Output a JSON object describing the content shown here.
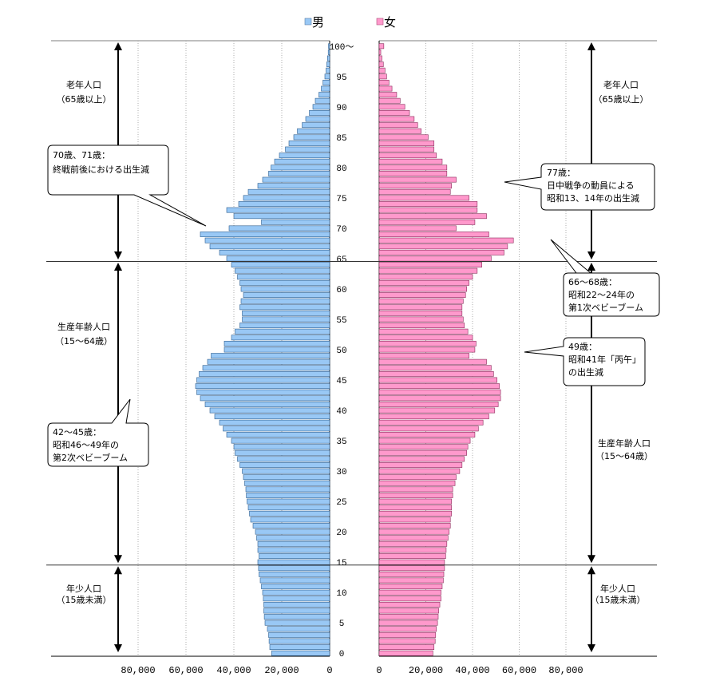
{
  "chart_data": {
    "type": "bar",
    "orientation": "horizontal-population-pyramid",
    "legend": [
      {
        "key": "male",
        "label": "男",
        "color": "#99c8f5"
      },
      {
        "key": "female",
        "label": "女",
        "color": "#ff99cc"
      }
    ],
    "x_axis_male": {
      "range": [
        80000,
        0
      ],
      "ticks": [
        "80,000",
        "60,000",
        "40,000",
        "20,000",
        "0"
      ]
    },
    "x_axis_female": {
      "range": [
        0,
        80000
      ],
      "ticks": [
        "0",
        "20,000",
        "40,000",
        "60,000",
        "80,000"
      ]
    },
    "age_ticks": [
      "0",
      "5",
      "10",
      "15",
      "20",
      "25",
      "30",
      "35",
      "40",
      "45",
      "50",
      "55",
      "60",
      "65",
      "70",
      "75",
      "80",
      "85",
      "90",
      "95",
      "100～"
    ],
    "ages": [
      0,
      1,
      2,
      3,
      4,
      5,
      6,
      7,
      8,
      9,
      10,
      11,
      12,
      13,
      14,
      15,
      16,
      17,
      18,
      19,
      20,
      21,
      22,
      23,
      24,
      25,
      26,
      27,
      28,
      29,
      30,
      31,
      32,
      33,
      34,
      35,
      36,
      37,
      38,
      39,
      40,
      41,
      42,
      43,
      44,
      45,
      46,
      47,
      48,
      49,
      50,
      51,
      52,
      53,
      54,
      55,
      56,
      57,
      58,
      59,
      60,
      61,
      62,
      63,
      64,
      65,
      66,
      67,
      68,
      69,
      70,
      71,
      72,
      73,
      74,
      75,
      76,
      77,
      78,
      79,
      80,
      81,
      82,
      83,
      84,
      85,
      86,
      87,
      88,
      89,
      90,
      91,
      92,
      93,
      94,
      95,
      96,
      97,
      98,
      99,
      100
    ],
    "series": [
      {
        "name": "男",
        "values": [
          24200,
          25000,
          25300,
          25500,
          26000,
          27000,
          27300,
          27500,
          27500,
          27700,
          28000,
          28500,
          29000,
          29500,
          29700,
          30000,
          29500,
          30000,
          30000,
          30500,
          31000,
          32000,
          33000,
          33500,
          34000,
          34500,
          34800,
          35000,
          35500,
          36000,
          36500,
          37500,
          38500,
          39500,
          40000,
          41000,
          43000,
          44500,
          46000,
          48000,
          50000,
          52000,
          54000,
          55500,
          56000,
          55500,
          54500,
          53000,
          51000,
          49500,
          44000,
          44000,
          41000,
          39500,
          37500,
          36500,
          36500,
          37500,
          37000,
          36000,
          37000,
          37500,
          38500,
          39500,
          41000,
          43000,
          46000,
          50000,
          52000,
          54000,
          42000,
          28500,
          40000,
          43000,
          38000,
          36000,
          34000,
          30000,
          28000,
          25500,
          24500,
          23000,
          21000,
          18500,
          17000,
          15000,
          13500,
          11500,
          10000,
          8500,
          7000,
          6000,
          4500,
          3500,
          2800,
          2000,
          1500,
          1200,
          900,
          600,
          500
        ]
      },
      {
        "name": "女",
        "values": [
          23000,
          23500,
          24000,
          24200,
          24500,
          25000,
          25300,
          25500,
          26000,
          26500,
          26500,
          27000,
          27500,
          27700,
          28000,
          28000,
          28500,
          28700,
          29000,
          29500,
          30000,
          30500,
          30500,
          31000,
          31000,
          31000,
          31500,
          31500,
          32500,
          33000,
          34500,
          35500,
          36500,
          37500,
          38000,
          39000,
          41000,
          42500,
          44500,
          47000,
          49500,
          51000,
          52000,
          52000,
          51500,
          50500,
          49000,
          48000,
          46000,
          38500,
          41000,
          41500,
          40000,
          38000,
          36500,
          36000,
          35500,
          35500,
          36000,
          37000,
          37500,
          38500,
          40000,
          42000,
          44000,
          48000,
          53500,
          55000,
          57500,
          47000,
          33000,
          41000,
          46000,
          42000,
          42000,
          38500,
          30500,
          31000,
          33000,
          29000,
          29000,
          27000,
          24500,
          23500,
          23500,
          21000,
          18000,
          16500,
          15000,
          13000,
          11000,
          9000,
          7500,
          5500,
          4200,
          3200,
          2500,
          1800,
          1200,
          700,
          2000
        ]
      }
    ],
    "divider_ages": [
      65,
      15
    ],
    "group_labels": {
      "elderly": [
        "老年人口",
        "（65歳以上）"
      ],
      "working": [
        "生産年齢人口",
        "（15～64歳）"
      ],
      "youth": [
        "年少人口",
        "（15歳未満）"
      ]
    },
    "annotations": [
      {
        "id": "a70",
        "lines": [
          "70歳、71歳：",
          "終戦前後における出生減"
        ]
      },
      {
        "id": "a42",
        "lines": [
          "42～45歳：",
          "昭和46～49年の",
          "第2次ベビーブーム"
        ]
      },
      {
        "id": "a77",
        "lines": [
          "77歳：",
          "日中戦争の動員による",
          "昭和13、14年の出生減"
        ]
      },
      {
        "id": "a66",
        "lines": [
          "66～68歳：",
          "昭和22～24年の",
          "第1次ベビーブーム"
        ]
      },
      {
        "id": "a49",
        "lines": [
          "49歳：",
          "昭和41年「丙午」",
          "の出生減"
        ]
      }
    ]
  }
}
